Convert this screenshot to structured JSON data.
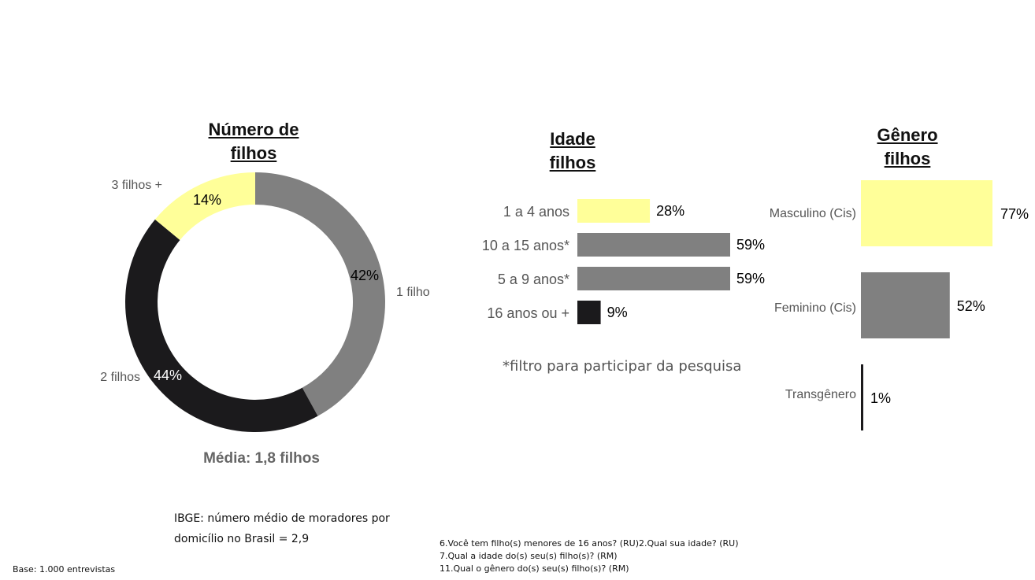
{
  "colors": {
    "yellow": "#FFFF99",
    "gray": "#808080",
    "black": "#1B1A1C"
  },
  "chart_data": [
    {
      "type": "pie",
      "variant": "donut",
      "title": "Número de filhos",
      "title_lines": [
        "Número de",
        "filhos"
      ],
      "categories": [
        "1 filho",
        "2 filhos",
        "3 filhos +"
      ],
      "values": [
        42,
        44,
        14
      ],
      "value_labels": [
        "42%",
        "44%",
        "14%"
      ],
      "colors": [
        "#808080",
        "#1B1A1C",
        "#FFFF99"
      ],
      "subtitle": "Média: 1,8 filhos"
    },
    {
      "type": "bar",
      "orientation": "horizontal",
      "title": "Idade filhos",
      "title_lines": [
        "Idade",
        "filhos"
      ],
      "categories": [
        "1 a 4 anos",
        "10 a 15 anos*",
        "5 a 9 anos*",
        "16 anos ou +"
      ],
      "values": [
        28,
        59,
        59,
        9
      ],
      "value_labels": [
        "28%",
        "59%",
        "59%",
        "9%"
      ],
      "colors": [
        "#FFFF99",
        "#808080",
        "#808080",
        "#1B1A1C"
      ],
      "note": "*filtro para participar da pesquisa"
    },
    {
      "type": "bar",
      "orientation": "horizontal",
      "title": "Gênero filhos",
      "title_lines": [
        "Gênero",
        "filhos"
      ],
      "categories": [
        "Masculino (Cis)",
        "Feminino (Cis)",
        "Transgênero"
      ],
      "values": [
        77,
        52,
        1
      ],
      "value_labels": [
        "77%",
        "52%",
        "1%"
      ],
      "colors": [
        "#FFFF99",
        "#808080",
        "#1B1A1C"
      ]
    }
  ],
  "footnotes": {
    "ibge_line1": "IBGE: número médio de moradores por",
    "ibge_line2": "domicílio no Brasil = 2,9",
    "questions": [
      "6.Você tem filho(s) menores de 16 anos? (RU)2.Qual sua idade? (RU)",
      "7.Qual a idade do(s) seu(s) filho(s)? (RM)",
      "11.Qual o gênero do(s) seu(s) filho(s)? (RM)"
    ],
    "base": "Base: 1.000 entrevistas"
  }
}
